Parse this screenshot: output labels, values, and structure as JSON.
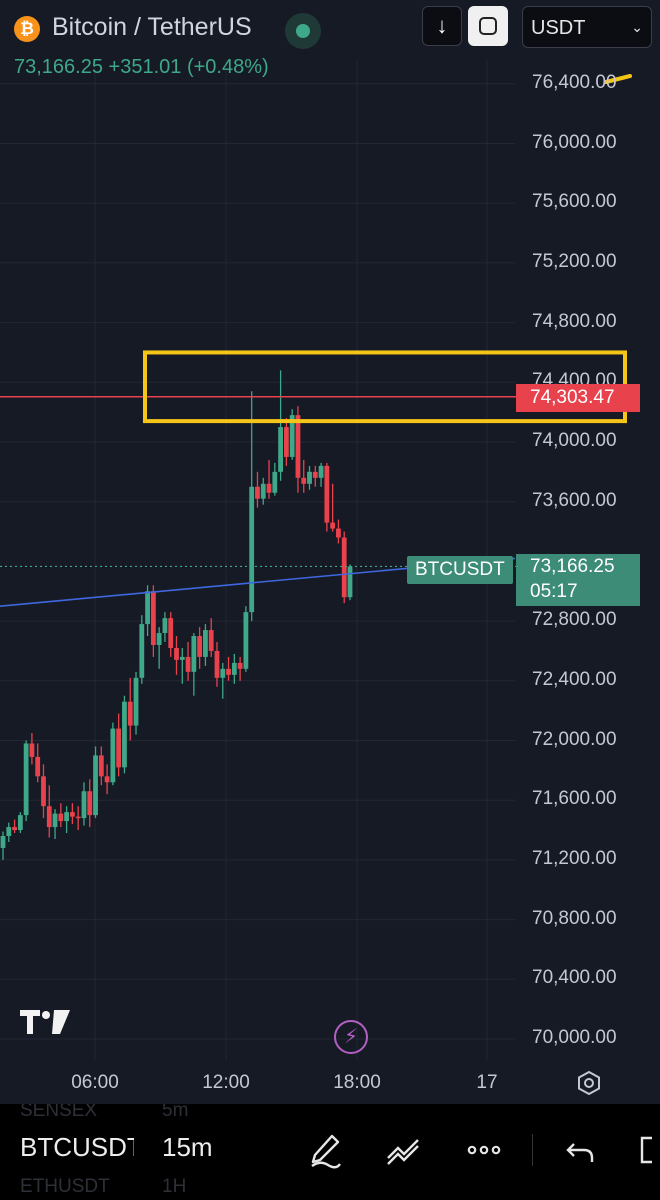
{
  "header": {
    "coin_glyph": "₿",
    "symbol_title": "Bitcoin / TetherUS",
    "price": "73,166.25",
    "change": "+351.01",
    "change_pct": "(+0.48%)",
    "currency": "USDT",
    "down_arrow": "↓",
    "chevron": "⌄"
  },
  "axis": {
    "price_ticks": [
      "76,400.00",
      "76,000.00",
      "75,600.00",
      "75,200.00",
      "74,800.00",
      "74,400.00",
      "74,000.00",
      "73,600.00",
      "72,800.00",
      "72,400.00",
      "72,000.00",
      "71,600.00",
      "71,200.00",
      "70,800.00",
      "70,400.00",
      "70,000.00"
    ],
    "time_ticks": [
      "06:00",
      "12:00",
      "18:00",
      "17"
    ]
  },
  "tags": {
    "resistance_price": "74,303.47",
    "symbol_tag": "BTCUSDT",
    "current_price": "73,166.25",
    "countdown": "05:17"
  },
  "bottom_bar": {
    "symbol": "BTCUSDT",
    "interval": "15m",
    "ghost_symbol_top": "SENSEX",
    "ghost_interval_top": "5m",
    "ghost_symbol_bottom": "ETHUSDT",
    "ghost_interval_bottom": "1H"
  },
  "colors": {
    "up": "#3ea889",
    "down": "#e8424d",
    "highlight_box": "#f5c518",
    "trendline": "#3f68e0"
  },
  "chart_data": {
    "type": "candlestick",
    "y_range": [
      69900,
      76500
    ],
    "resistance_level": 74303.47,
    "current_price": 73166.25,
    "highlight_zone": [
      74140,
      74600
    ],
    "trendline": {
      "start": [
        0,
        72900
      ],
      "end": [
        1,
        73220
      ]
    },
    "candles": [
      [
        71280,
        71390,
        71200,
        71360
      ],
      [
        71360,
        71450,
        71320,
        71420
      ],
      [
        71420,
        71470,
        71380,
        71400
      ],
      [
        71400,
        71520,
        71380,
        71500
      ],
      [
        71500,
        72000,
        71460,
        71980
      ],
      [
        71980,
        72050,
        71840,
        71890
      ],
      [
        71890,
        71980,
        71720,
        71760
      ],
      [
        71760,
        71840,
        71480,
        71560
      ],
      [
        71560,
        71700,
        71350,
        71420
      ],
      [
        71420,
        71540,
        71340,
        71510
      ],
      [
        71510,
        71580,
        71420,
        71460
      ],
      [
        71460,
        71560,
        71380,
        71520
      ],
      [
        71520,
        71580,
        71440,
        71490
      ],
      [
        71490,
        71560,
        71400,
        71480
      ],
      [
        71480,
        71720,
        71430,
        71660
      ],
      [
        71660,
        71740,
        71420,
        71500
      ],
      [
        71500,
        71960,
        71480,
        71900
      ],
      [
        71900,
        71960,
        71700,
        71760
      ],
      [
        71760,
        71840,
        71640,
        71720
      ],
      [
        71720,
        72120,
        71700,
        72080
      ],
      [
        72080,
        72180,
        71760,
        71820
      ],
      [
        71820,
        72300,
        71780,
        72260
      ],
      [
        72260,
        72420,
        72000,
        72100
      ],
      [
        72100,
        72460,
        72040,
        72420
      ],
      [
        72420,
        72840,
        72380,
        72780
      ],
      [
        72780,
        73040,
        72700,
        73000
      ],
      [
        73000,
        73040,
        72560,
        72640
      ],
      [
        72640,
        72760,
        72480,
        72720
      ],
      [
        72720,
        72860,
        72660,
        72820
      ],
      [
        72820,
        72860,
        72560,
        72620
      ],
      [
        72620,
        72700,
        72440,
        72540
      ],
      [
        72540,
        72620,
        72380,
        72560
      ],
      [
        72560,
        72660,
        72400,
        72460
      ],
      [
        72460,
        72720,
        72300,
        72700
      ],
      [
        72700,
        72760,
        72480,
        72560
      ],
      [
        72560,
        72780,
        72500,
        72740
      ],
      [
        72740,
        72820,
        72560,
        72600
      ],
      [
        72600,
        72660,
        72360,
        72420
      ],
      [
        72420,
        72520,
        72280,
        72480
      ],
      [
        72480,
        72560,
        72400,
        72440
      ],
      [
        72440,
        72580,
        72380,
        72520
      ],
      [
        72520,
        72560,
        72400,
        72480
      ],
      [
        72480,
        72900,
        72460,
        72860
      ],
      [
        72860,
        74340,
        72800,
        73700
      ],
      [
        73700,
        73800,
        73560,
        73620
      ],
      [
        73620,
        73760,
        73580,
        73720
      ],
      [
        73720,
        73880,
        73620,
        73660
      ],
      [
        73660,
        73860,
        73640,
        73800
      ],
      [
        73800,
        74480,
        73740,
        74100
      ],
      [
        74100,
        74160,
        73840,
        73900
      ],
      [
        73900,
        74220,
        73880,
        74180
      ],
      [
        74180,
        74240,
        73660,
        73760
      ],
      [
        73760,
        73880,
        73660,
        73720
      ],
      [
        73720,
        73840,
        73680,
        73800
      ],
      [
        73800,
        73840,
        73700,
        73760
      ],
      [
        73760,
        73860,
        73700,
        73840
      ],
      [
        73840,
        73860,
        73400,
        73460
      ],
      [
        73460,
        73720,
        73400,
        73420
      ],
      [
        73420,
        73480,
        73320,
        73360
      ],
      [
        73360,
        73400,
        72920,
        72960
      ],
      [
        72960,
        73180,
        72940,
        73166
      ]
    ]
  }
}
